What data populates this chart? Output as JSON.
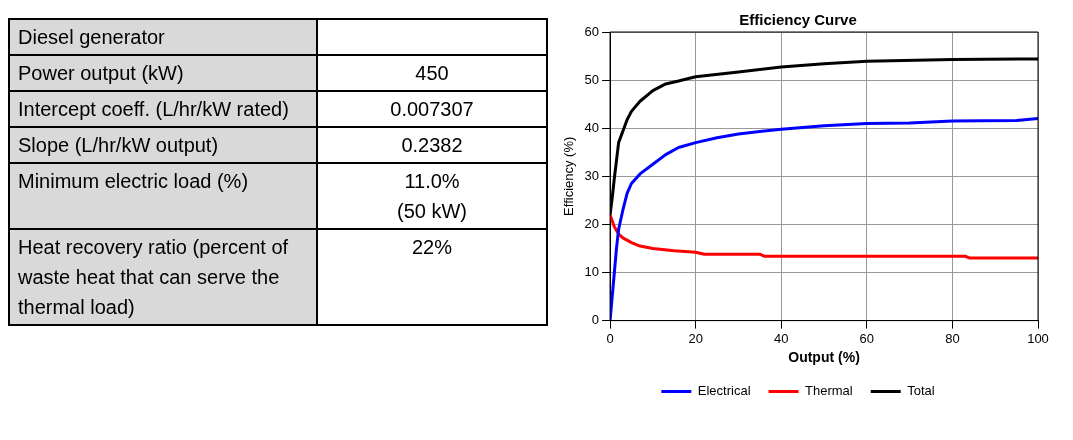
{
  "chart_data": [
    {
      "type": "other",
      "categories": [
        "Diesel generator",
        "Power output (kW)",
        "Intercept coeff. (L/hr/kW rated)",
        "Slope (L/hr/kW output)",
        "Minimum electric load (%)",
        "Heat recovery ratio (percent of waste heat that can serve the thermal load)"
      ],
      "value_labels": [
        null,
        "450",
        "0.007307",
        "0.2382",
        "11.0%\n(50 kW)",
        "22%"
      ]
    },
    {
      "type": "line",
      "title": "Efficiency Curve",
      "xlabel": "Output (%)",
      "ylabel": "Efficiency (%)",
      "xlim": [
        0,
        100
      ],
      "ylim": [
        0,
        60
      ],
      "xticks": [
        0,
        20,
        40,
        60,
        80,
        100
      ],
      "yticks": [
        0,
        10,
        20,
        30,
        40,
        50,
        60
      ],
      "grid": true,
      "legend": "bottom",
      "marker": "none",
      "series": [
        {
          "name": "Electrical",
          "color": "#0000ff",
          "x": [
            0,
            0.5,
            1,
            1.5,
            2,
            3,
            4,
            5,
            7,
            10,
            13,
            16,
            20,
            25,
            30,
            40,
            50,
            60,
            70,
            80,
            95,
            100
          ],
          "values": [
            0,
            5,
            10,
            15,
            19,
            23,
            26.5,
            28.5,
            30.5,
            32.5,
            34.5,
            36,
            37,
            38,
            38.8,
            39.8,
            40.5,
            41,
            41.1,
            41.5,
            41.6,
            42
          ]
        },
        {
          "name": "Thermal",
          "color": "#ff0000",
          "x": [
            0,
            1,
            2,
            3,
            5,
            7,
            10,
            15,
            20,
            22,
            35,
            36,
            83,
            84,
            100
          ],
          "values": [
            22,
            19.5,
            18,
            17.2,
            16.2,
            15.5,
            15,
            14.5,
            14.2,
            13.8,
            13.8,
            13.4,
            13.4,
            13,
            13
          ]
        },
        {
          "name": "Total",
          "color": "#000000",
          "x": [
            0,
            0.5,
            1,
            2,
            4,
            5,
            7,
            10,
            13,
            16,
            20,
            30,
            40,
            50,
            60,
            80,
            100
          ],
          "values": [
            22,
            25.5,
            29.6,
            37,
            41.8,
            43.5,
            45.6,
            47.8,
            49.2,
            49.8,
            50.7,
            51.7,
            52.7,
            53.4,
            53.9,
            54.3,
            54.4
          ]
        }
      ]
    }
  ]
}
